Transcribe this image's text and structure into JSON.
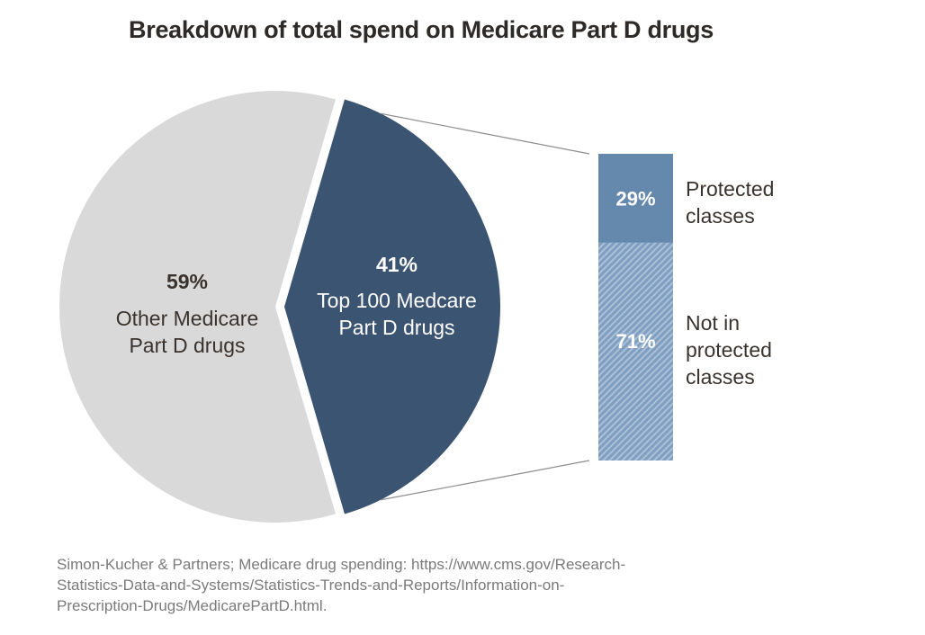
{
  "title": "Breakdown of total spend on Medicare Part D drugs",
  "colors": {
    "other": "#d9d9d9",
    "top100": "#3b5472",
    "protected": "#6588ad",
    "not_protected": "#8aa8c8",
    "connector": "#8c8c8c",
    "dark_text": "#3a332d",
    "light_text": "#ffffff"
  },
  "chart_data": [
    {
      "type": "pie",
      "title": "Breakdown of total spend on Medicare Part D drugs",
      "slices": [
        {
          "label_value": "59%",
          "label_text": [
            "Other Medicare",
            "Part D drugs"
          ],
          "value": 59,
          "exploded": false
        },
        {
          "label_value": "41%",
          "label_text": [
            "Top 100 Medcare",
            "Part D drugs"
          ],
          "value": 41,
          "exploded": true
        }
      ]
    },
    {
      "type": "bar",
      "stacked": true,
      "breakdown_of": "Top 100 Medcare Part D drugs",
      "segments": [
        {
          "label_value": "29%",
          "label_text": [
            "Protected",
            "classes"
          ],
          "value": 29,
          "pattern": "solid"
        },
        {
          "label_value": "71%",
          "label_text": [
            "Not in",
            "protected",
            "classes"
          ],
          "value": 71,
          "pattern": "hatched"
        }
      ]
    }
  ],
  "source": "Simon-Kucher & Partners; Medicare drug spending: https://www.cms.gov/Research-Statistics-Data-and-Systems/Statistics-Trends-and-Reports/Information-on-Prescription-Drugs/MedicarePartD.html."
}
